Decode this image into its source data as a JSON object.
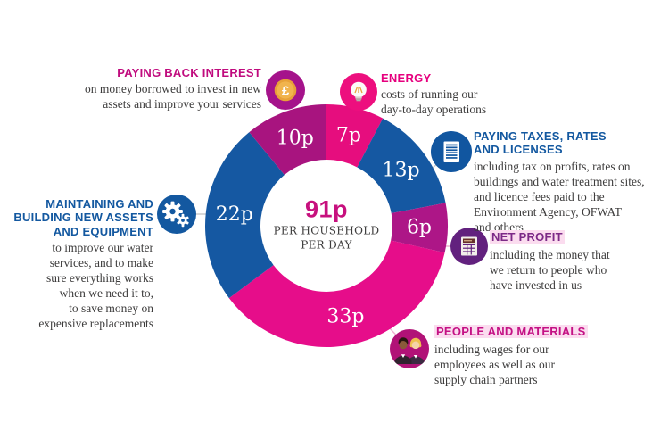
{
  "page": {
    "background": "#ffffff"
  },
  "chart_data": {
    "type": "donut",
    "total": 91,
    "start_angle_deg": 0,
    "direction": "clockwise",
    "center": {
      "amount": "91p",
      "amount_color": "#c7107e",
      "caption_lines": [
        "PER HOUSEHOLD",
        "PER DAY"
      ]
    },
    "segments": [
      {
        "label": "7p",
        "value": 7,
        "color": "#e60d7e",
        "category": "Energy"
      },
      {
        "label": "13p",
        "value": 13,
        "color": "#1558a2",
        "category": "Paying taxes, rates and licenses"
      },
      {
        "label": "6p",
        "value": 6,
        "color": "#ad1687",
        "category": "Net profit"
      },
      {
        "label": "33p",
        "value": 33,
        "color": "#e60d8a",
        "category": "People and materials"
      },
      {
        "label": "22p",
        "value": 22,
        "color": "#1558a2",
        "category": "Maintaining and building new assets and equipment"
      },
      {
        "label": "10p",
        "value": 10,
        "color": "#a8147f",
        "category": "Paying back interest"
      }
    ]
  },
  "callouts": {
    "paying_back_interest": {
      "heading": "PAYING BACK INTEREST",
      "accent": "#c00b7e",
      "body_lines": [
        "on money borrowed to invest in new",
        "assets and improve your services"
      ]
    },
    "energy": {
      "heading": "ENERGY",
      "accent": "#e6007e",
      "body_lines": [
        "costs of running our",
        "day-to-day operations"
      ]
    },
    "taxes": {
      "heading_lines": [
        "PAYING TAXES, RATES",
        "AND LICENSES"
      ],
      "accent": "#1358a0",
      "body_lines": [
        "including tax on profits, rates on",
        "buildings and water treatment sites,",
        "and licence fees paid to the",
        "Environment Agency, OFWAT",
        "and others"
      ]
    },
    "net_profit": {
      "heading": "NET PROFIT",
      "accent": "#7c2987",
      "body_lines": [
        "including the money that",
        "we return to people who",
        "have invested in us"
      ]
    },
    "people_materials": {
      "heading": "PEOPLE AND MATERIALS",
      "accent": "#c41184",
      "body_lines": [
        "including wages for our",
        "employees as well as our",
        "supply chain partners"
      ]
    },
    "maintaining": {
      "heading_lines": [
        "MAINTAINING AND",
        "BUILDING NEW ASSETS",
        "AND EQUIPMENT"
      ],
      "accent": "#1358a0",
      "body_lines": [
        "to improve our water",
        "services, and to make",
        "sure everything works",
        "when we need it to,",
        "to save money on",
        "expensive replacements"
      ]
    }
  },
  "icons": {
    "paying_back_interest": {
      "name": "pound-coin-icon",
      "circle_color": "#a5138b",
      "coin_color": "#e8a138",
      "symbol": "£"
    },
    "energy": {
      "name": "lightbulb-icon",
      "circle_color": "#ed0f7e"
    },
    "taxes": {
      "name": "document-icon",
      "circle_color": "#1156a0"
    },
    "net_profit": {
      "name": "calculator-icon",
      "circle_color": "#62217e"
    },
    "people_materials": {
      "name": "two-people-icon",
      "circle_color": "#b11277"
    },
    "maintaining": {
      "name": "gears-icon",
      "circle_color": "#1358a0"
    }
  }
}
